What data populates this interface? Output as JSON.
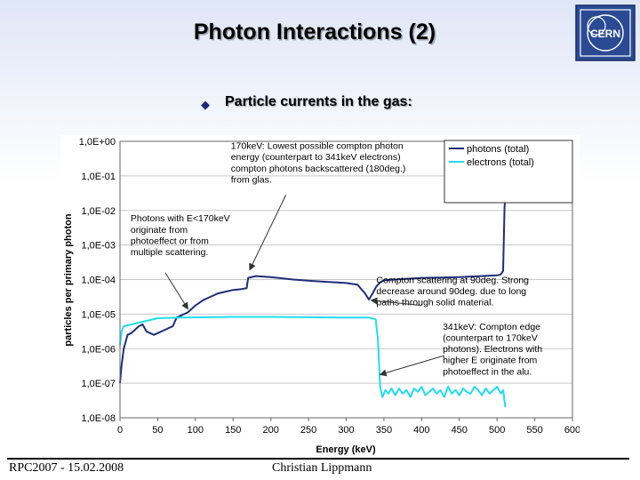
{
  "slide": {
    "title": "Photon Interactions (2)",
    "bullet": "Particle currents in the gas:",
    "footer_left": "RPC2007 - 15.02.2008",
    "footer_center": "Christian Lippmann",
    "logo_text": "CERN"
  },
  "chart_data": {
    "type": "line",
    "xlabel": "Energy (keV)",
    "ylabel": "particles per primary photon",
    "xlim": [
      0,
      600
    ],
    "ylim_log10": [
      -8,
      0
    ],
    "x_ticks": [
      "0",
      "50",
      "100",
      "150",
      "200",
      "250",
      "300",
      "350",
      "400",
      "450",
      "500",
      "550",
      "600"
    ],
    "y_ticks": [
      "1,0E+00",
      "1,0E-01",
      "1,0E-02",
      "1,0E-03",
      "1,0E-04",
      "1,0E-05",
      "1,0E-06",
      "1,0E-07",
      "1,0E-08"
    ],
    "grid": "horizontal",
    "legend_position": "top-right",
    "series": [
      {
        "name": "photons (total)",
        "color": "#1f2d7a",
        "points": [
          [
            0,
            -7.0
          ],
          [
            2,
            -6.5
          ],
          [
            5,
            -6.0
          ],
          [
            10,
            -5.6
          ],
          [
            15,
            -5.55
          ],
          [
            20,
            -5.45
          ],
          [
            25,
            -5.35
          ],
          [
            30,
            -5.3
          ],
          [
            35,
            -5.5
          ],
          [
            40,
            -5.55
          ],
          [
            45,
            -5.6
          ],
          [
            50,
            -5.55
          ],
          [
            55,
            -5.5
          ],
          [
            60,
            -5.45
          ],
          [
            65,
            -5.4
          ],
          [
            70,
            -5.35
          ],
          [
            75,
            -5.1
          ],
          [
            80,
            -5.05
          ],
          [
            85,
            -5.0
          ],
          [
            90,
            -4.95
          ],
          [
            95,
            -4.85
          ],
          [
            100,
            -4.75
          ],
          [
            110,
            -4.6
          ],
          [
            120,
            -4.5
          ],
          [
            130,
            -4.4
          ],
          [
            140,
            -4.35
          ],
          [
            150,
            -4.3
          ],
          [
            160,
            -4.28
          ],
          [
            168,
            -4.25
          ],
          [
            170,
            -3.95
          ],
          [
            180,
            -3.9
          ],
          [
            200,
            -3.93
          ],
          [
            230,
            -4.0
          ],
          [
            260,
            -4.05
          ],
          [
            285,
            -4.08
          ],
          [
            300,
            -4.1
          ],
          [
            315,
            -4.15
          ],
          [
            325,
            -4.4
          ],
          [
            330,
            -4.58
          ],
          [
            335,
            -4.4
          ],
          [
            340,
            -4.2
          ],
          [
            345,
            -4.08
          ],
          [
            350,
            -4.02
          ],
          [
            400,
            -3.95
          ],
          [
            450,
            -3.93
          ],
          [
            500,
            -3.88
          ],
          [
            505,
            -3.85
          ],
          [
            508,
            -3.75
          ],
          [
            510,
            -1.9
          ],
          [
            511,
            -1.6
          ]
        ]
      },
      {
        "name": "electrons (total)",
        "color": "#22dcef",
        "points": [
          [
            0,
            -5.9
          ],
          [
            2,
            -5.5
          ],
          [
            5,
            -5.35
          ],
          [
            15,
            -5.3
          ],
          [
            50,
            -5.12
          ],
          [
            80,
            -5.1
          ],
          [
            150,
            -5.08
          ],
          [
            200,
            -5.08
          ],
          [
            250,
            -5.09
          ],
          [
            300,
            -5.1
          ],
          [
            330,
            -5.1
          ],
          [
            339,
            -5.15
          ],
          [
            342,
            -5.7
          ],
          [
            345,
            -7.1
          ],
          [
            348,
            -7.4
          ],
          [
            352,
            -7.2
          ],
          [
            356,
            -7.3
          ],
          [
            360,
            -7.15
          ],
          [
            365,
            -7.35
          ],
          [
            370,
            -7.15
          ],
          [
            375,
            -7.3
          ],
          [
            380,
            -7.2
          ],
          [
            385,
            -7.4
          ],
          [
            390,
            -7.15
          ],
          [
            395,
            -7.25
          ],
          [
            400,
            -7.1
          ],
          [
            405,
            -7.35
          ],
          [
            410,
            -7.25
          ],
          [
            415,
            -7.15
          ],
          [
            420,
            -7.3
          ],
          [
            425,
            -7.2
          ],
          [
            430,
            -7.4
          ],
          [
            435,
            -7.1
          ],
          [
            440,
            -7.3
          ],
          [
            445,
            -7.2
          ],
          [
            450,
            -7.35
          ],
          [
            455,
            -7.15
          ],
          [
            460,
            -7.25
          ],
          [
            465,
            -7.3
          ],
          [
            470,
            -7.1
          ],
          [
            475,
            -7.2
          ],
          [
            480,
            -7.35
          ],
          [
            485,
            -7.15
          ],
          [
            490,
            -7.3
          ],
          [
            495,
            -7.2
          ],
          [
            500,
            -7.1
          ],
          [
            505,
            -7.3
          ],
          [
            508,
            -7.2
          ],
          [
            511,
            -7.7
          ]
        ]
      }
    ],
    "annotations": [
      {
        "lines": [
          "170keV: Lowest possible compton photon",
          "energy (counterpart to 341keV electrons)",
          "compton photons backscattered (180deg.)",
          "from glas."
        ],
        "text_at": [
          147,
          -0.22
        ],
        "arrow_from": [
          220,
          -1.55
        ],
        "arrow_to": [
          172,
          -3.72
        ]
      },
      {
        "lines": [
          "Photons with E<170keV",
          "originate from",
          "photoeffect or from",
          "multiple scattering."
        ],
        "text_at": [
          14,
          -2.32
        ],
        "arrow_from": [
          60,
          -3.8
        ],
        "arrow_to": [
          90,
          -4.85
        ]
      },
      {
        "lines": [
          "Compton scattering at 90deg. Strong",
          "decrease around 90deg. due to long",
          "paths through solid material."
        ],
        "text_at": [
          340,
          -4.1
        ],
        "arrow_from": [
          400,
          -4.75
        ],
        "arrow_to": [
          333,
          -4.6
        ]
      },
      {
        "lines": [
          "341keV: Compton edge",
          "(counterpart to 170keV",
          "photons). Electrons with",
          "higher E originate from",
          "photoeffect in the alu."
        ],
        "text_at": [
          428,
          -5.45
        ],
        "arrow_from": [
          430,
          -6.2
        ],
        "arrow_to": [
          345,
          -6.75
        ]
      }
    ]
  }
}
